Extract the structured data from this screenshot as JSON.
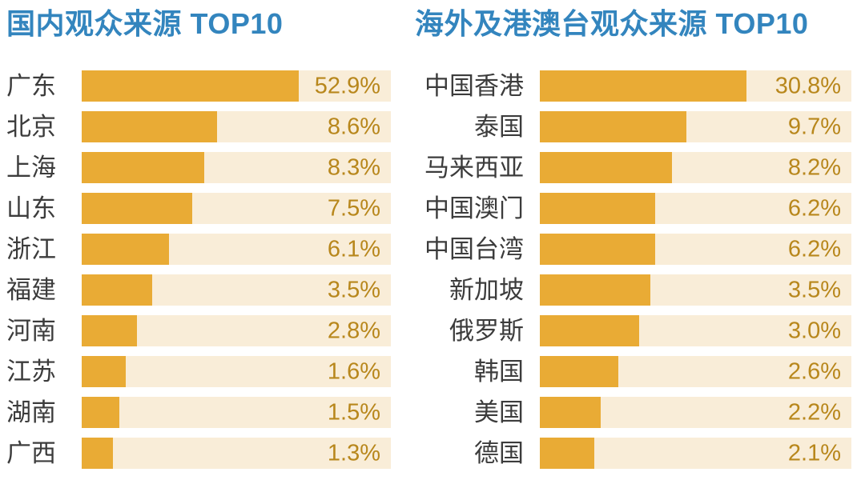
{
  "colors": {
    "background": "#FFFFFF",
    "title": "#3385BE",
    "bar": "#E9AB35",
    "track": "#F9EDD8",
    "value_text": "#B8871C",
    "label_text": "#3C3C3C"
  },
  "chart_data": [
    {
      "type": "bar",
      "orientation": "horizontal",
      "title": "国内观众来源 TOP10",
      "categories": [
        "广东",
        "北京",
        "上海",
        "山东",
        "浙江",
        "福建",
        "河南",
        "江苏",
        "湖南",
        "广西"
      ],
      "values": [
        52.9,
        8.6,
        8.3,
        7.5,
        6.1,
        3.5,
        2.8,
        1.6,
        1.5,
        1.3
      ],
      "unit": "%",
      "value_labels": [
        "52.9%",
        "8.6%",
        "8.3%",
        "7.5%",
        "6.1%",
        "3.5%",
        "2.8%",
        "1.6%",
        "1.5%",
        "1.3%"
      ],
      "bar_display_pct": [
        70.2,
        43.9,
        39.7,
        35.8,
        28.3,
        22.8,
        17.8,
        14.2,
        12.1,
        10.0
      ],
      "grid": false,
      "legend": false,
      "value_axis_hidden": true,
      "value_labels_position": "inside-track-right"
    },
    {
      "type": "bar",
      "orientation": "horizontal",
      "title": "海外及港澳台观众来源 TOP10",
      "categories": [
        "中国香港",
        "泰国",
        "马来西亚",
        "中国澳门",
        "中国台湾",
        "新加坡",
        "俄罗斯",
        "韩国",
        "美国",
        "德国"
      ],
      "values": [
        30.8,
        9.7,
        8.2,
        6.2,
        6.2,
        3.5,
        3.0,
        2.6,
        2.2,
        2.1
      ],
      "unit": "%",
      "value_labels": [
        "30.8%",
        "9.7%",
        "8.2%",
        "6.2%",
        "6.2%",
        "3.5%",
        "3.0%",
        "2.6%",
        "2.2%",
        "2.1%"
      ],
      "bar_display_pct": [
        66.3,
        47.0,
        42.5,
        37.0,
        37.0,
        35.4,
        32.0,
        25.3,
        19.6,
        17.6
      ],
      "grid": false,
      "legend": false,
      "value_axis_hidden": true,
      "value_labels_position": "inside-track-right"
    }
  ]
}
